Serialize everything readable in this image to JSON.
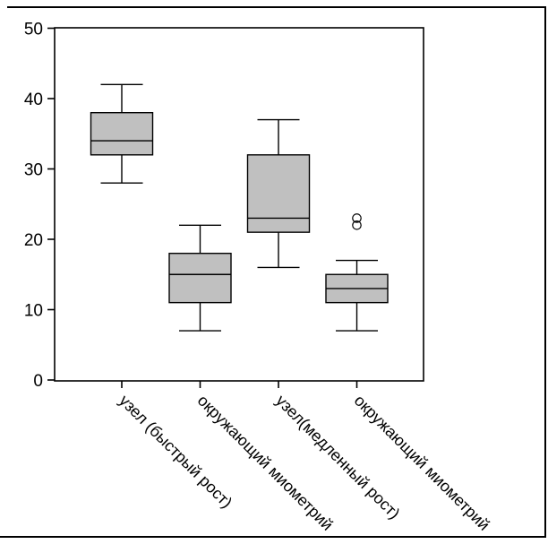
{
  "chart_data": {
    "type": "boxplot",
    "categories": [
      "узел (быстрый рост)",
      "окружающий миометрий",
      "узел(медленный рост)",
      "окружающий миометрий"
    ],
    "series": [
      {
        "category": "узел (быстрый рост)",
        "min": 28,
        "q1": 32,
        "median": 34,
        "q3": 38,
        "max": 42,
        "outliers": []
      },
      {
        "category": "окружающий миометрий",
        "min": 7,
        "q1": 11,
        "median": 15,
        "q3": 18,
        "max": 22,
        "outliers": []
      },
      {
        "category": "узел(медленный рост)",
        "min": 16,
        "q1": 21,
        "median": 23,
        "q3": 32,
        "max": 37,
        "outliers": []
      },
      {
        "category": "окружающий миометрий",
        "min": 7,
        "q1": 11,
        "median": 13,
        "q3": 15,
        "max": 17,
        "outliers": [
          22,
          23
        ]
      }
    ],
    "ylim": [
      0,
      50
    ],
    "yticks": [
      0,
      10,
      20,
      30,
      40,
      50
    ],
    "grid": false,
    "legend": "none",
    "x_label_rotation_deg": 45,
    "box_fill": "#c0c0c0",
    "line_color": "#000000",
    "outlier_marker": "open-circle",
    "background": "#ffffff",
    "border_color": "#000000"
  }
}
